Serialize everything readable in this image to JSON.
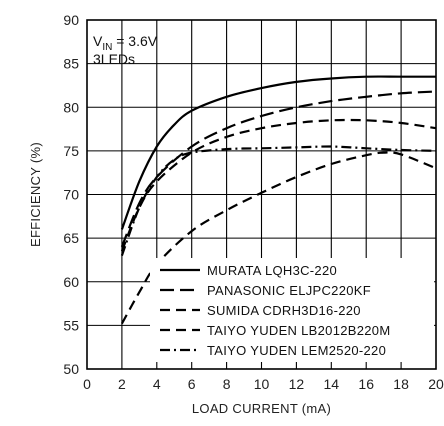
{
  "chart_data": {
    "type": "line",
    "xlabel": "LOAD CURRENT (mA)",
    "ylabel": "EFFICIENCY (%)",
    "xlim": [
      0,
      20
    ],
    "ylim": [
      50,
      90
    ],
    "xticks": [
      0,
      2,
      4,
      6,
      8,
      10,
      12,
      14,
      16,
      18,
      20
    ],
    "yticks": [
      50,
      55,
      60,
      65,
      70,
      75,
      80,
      85,
      90
    ],
    "grid": true,
    "legend_position": "bottom-right",
    "annotation": {
      "line1_prefix": "V",
      "line1_subscript": "IN",
      "line1_suffix": " = 3.6V",
      "line2": "3LEDs"
    },
    "series": [
      {
        "name": "MURATA LQH3C-220",
        "dash": "solid",
        "points": [
          [
            2,
            66
          ],
          [
            3,
            71.5
          ],
          [
            4,
            75.5
          ],
          [
            5,
            78
          ],
          [
            6,
            79.6
          ],
          [
            8,
            81.2
          ],
          [
            10,
            82.2
          ],
          [
            12,
            82.9
          ],
          [
            14,
            83.3
          ],
          [
            16,
            83.5
          ],
          [
            18,
            83.5
          ],
          [
            20,
            83.5
          ]
        ]
      },
      {
        "name": "PANASONIC ELJPC220KF",
        "dash": "long-dash",
        "points": [
          [
            2,
            64
          ],
          [
            3,
            69
          ],
          [
            4,
            72
          ],
          [
            6,
            75.5
          ],
          [
            8,
            77.6
          ],
          [
            10,
            79
          ],
          [
            12,
            80
          ],
          [
            14,
            80.7
          ],
          [
            16,
            81.2
          ],
          [
            18,
            81.6
          ],
          [
            20,
            81.8
          ]
        ]
      },
      {
        "name": "SUMIDA CDRH3D16-220",
        "dash": "dash",
        "points": [
          [
            2,
            63.5
          ],
          [
            3,
            68.5
          ],
          [
            4,
            71.5
          ],
          [
            6,
            74.8
          ],
          [
            8,
            76.6
          ],
          [
            10,
            77.6
          ],
          [
            12,
            78.2
          ],
          [
            14,
            78.5
          ],
          [
            16,
            78.5
          ],
          [
            18,
            78.2
          ],
          [
            20,
            77.6
          ]
        ]
      },
      {
        "name": "TAIYO YUDEN LB2012B220M",
        "dash": "dash",
        "points": [
          [
            2,
            55.2
          ],
          [
            3,
            58.8
          ],
          [
            4,
            62
          ],
          [
            6,
            65.8
          ],
          [
            8,
            68.2
          ],
          [
            10,
            70.2
          ],
          [
            12,
            72
          ],
          [
            14,
            73.5
          ],
          [
            16,
            74.5
          ],
          [
            17,
            74.8
          ],
          [
            18,
            74.6
          ],
          [
            20,
            73
          ]
        ]
      },
      {
        "name": "TAIYO YUDEN LEM2520-220",
        "dash": "dash-dot",
        "points": [
          [
            2,
            63
          ],
          [
            3,
            68.5
          ],
          [
            4,
            72
          ],
          [
            5,
            74
          ],
          [
            6,
            74.8
          ],
          [
            8,
            75.2
          ],
          [
            10,
            75.3
          ],
          [
            12,
            75.4
          ],
          [
            14,
            75.5
          ],
          [
            16,
            75.3
          ],
          [
            18,
            75.1
          ],
          [
            20,
            75
          ]
        ]
      }
    ]
  }
}
